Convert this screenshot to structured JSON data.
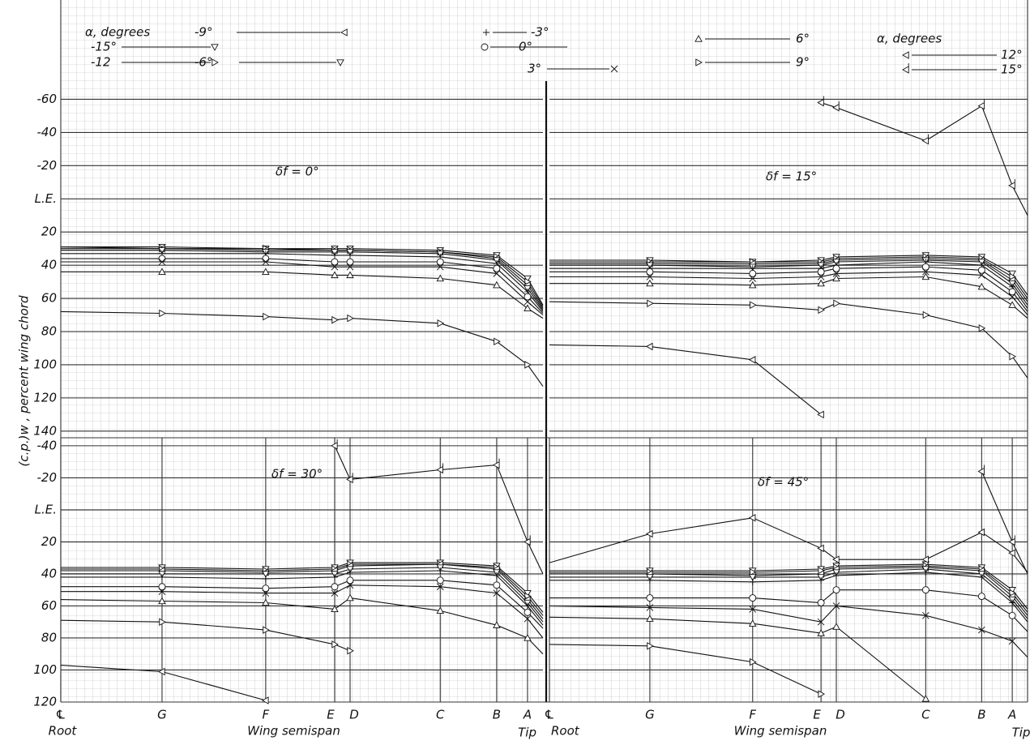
{
  "ylabel": "(c.p.)w , percent wing chord",
  "legend": {
    "title": "α, degrees",
    "entries": [
      {
        "label": "-15°",
        "marker": "tri-down"
      },
      {
        "label": "-12",
        "marker": "tri-right"
      },
      {
        "label": "-9°",
        "marker": "tri-left"
      },
      {
        "label": "-6°",
        "marker": "tri-down"
      },
      {
        "label": "-3°",
        "marker": "plus"
      },
      {
        "label": "0°",
        "marker": "circle"
      },
      {
        "label": "3°",
        "marker": "cross"
      },
      {
        "label": "6°",
        "marker": "tri-up"
      },
      {
        "label": "9°",
        "marker": "tri-right"
      },
      {
        "label": "12°",
        "marker": "tri-left"
      },
      {
        "label": "15°",
        "marker": "tri-left-flag"
      }
    ]
  },
  "chart_data": [
    {
      "type": "line",
      "title": "δf = 0°",
      "color": "#111",
      "x": [
        0,
        21,
        42.5,
        56.8,
        60,
        78.7,
        90.4,
        96.8,
        100
      ],
      "xlim": [
        0,
        100
      ],
      "ylim": [
        -70,
        144
      ],
      "y_inverted": true,
      "yticks": [
        -60,
        -40,
        -20,
        {
          "value": 0,
          "label": "L.E."
        },
        20,
        40,
        60,
        80,
        100,
        120,
        140
      ],
      "series": [
        {
          "values": [
            29,
            29,
            30,
            30,
            30,
            31,
            34,
            48,
            64
          ]
        },
        {
          "values": [
            29,
            30,
            30,
            31,
            31,
            32,
            35,
            50,
            65
          ]
        },
        {
          "values": [
            30,
            30,
            31,
            31,
            31,
            32,
            36,
            52,
            66
          ]
        },
        {
          "values": [
            31,
            31,
            32,
            32,
            32,
            33,
            37,
            54,
            67
          ]
        },
        {
          "values": [
            33,
            33,
            33,
            34,
            34,
            35,
            39,
            56,
            68
          ]
        },
        {
          "values": [
            36,
            36,
            36,
            38,
            38,
            38,
            42,
            59,
            69
          ]
        },
        {
          "values": [
            38,
            38,
            38,
            41,
            41,
            41,
            45,
            62,
            70
          ]
        },
        {
          "values": [
            44,
            44,
            44,
            46,
            46,
            48,
            52,
            66,
            72
          ]
        },
        {
          "values": [
            68,
            69,
            71,
            73,
            72,
            75,
            86,
            100,
            113
          ]
        },
        {
          "values": [
            null,
            null,
            null,
            null,
            null,
            null,
            null,
            null,
            null
          ]
        },
        {
          "values": [
            null,
            null,
            null,
            null,
            null,
            null,
            null,
            null,
            null
          ]
        }
      ]
    },
    {
      "type": "line",
      "title": "δf = 15°",
      "color": "#111",
      "x": [
        0,
        21,
        42.5,
        56.8,
        60,
        78.7,
        90.4,
        96.8,
        100
      ],
      "xlim": [
        0,
        100
      ],
      "ylim": [
        -70,
        144
      ],
      "y_inverted": true,
      "yticks": [
        -60,
        -40,
        -20,
        0,
        20,
        40,
        60,
        80,
        100,
        120,
        140
      ],
      "series": [
        {
          "values": [
            37,
            37,
            38,
            37,
            35,
            34,
            35,
            45,
            58
          ]
        },
        {
          "values": [
            38,
            38,
            38,
            38,
            36,
            35,
            36,
            47,
            60
          ]
        },
        {
          "values": [
            39,
            39,
            39,
            39,
            37,
            36,
            37,
            49,
            62
          ]
        },
        {
          "values": [
            40,
            40,
            41,
            40,
            38,
            37,
            38,
            51,
            64
          ]
        },
        {
          "values": [
            42,
            42,
            42,
            42,
            40,
            38,
            40,
            53,
            66
          ]
        },
        {
          "values": [
            44,
            44,
            45,
            44,
            42,
            41,
            43,
            56,
            68
          ]
        },
        {
          "values": [
            47,
            47,
            48,
            47,
            45,
            44,
            46,
            59,
            70
          ]
        },
        {
          "values": [
            51,
            51,
            52,
            51,
            48,
            47,
            53,
            64,
            72
          ]
        },
        {
          "values": [
            62,
            63,
            64,
            67,
            63,
            70,
            78,
            95,
            108
          ]
        },
        {
          "values": [
            88,
            89,
            97,
            130,
            null,
            null,
            null,
            null,
            null
          ]
        },
        {
          "values": [
            null,
            null,
            null,
            -58,
            -55,
            -35,
            -56,
            -8,
            10
          ]
        }
      ]
    },
    {
      "type": "line",
      "title": "δf = 30°",
      "color": "#111",
      "x": [
        0,
        21,
        42.5,
        56.8,
        60,
        78.7,
        90.4,
        96.8,
        100
      ],
      "xlim": [
        0,
        100
      ],
      "xticks": [
        {
          "value": 0,
          "label": "℄"
        },
        {
          "value": 21,
          "label": "G"
        },
        {
          "value": 42.5,
          "label": "F"
        },
        {
          "value": 56.8,
          "label": "E"
        },
        {
          "value": 60,
          "label": "D"
        },
        {
          "value": 78.7,
          "label": "C"
        },
        {
          "value": 90.4,
          "label": "B"
        },
        {
          "value": 96.8,
          "label": "A"
        }
      ],
      "xlabel": "Wing semispan",
      "root_label": "Root",
      "tip_label": "Tip",
      "ylim": [
        -45,
        120
      ],
      "y_inverted": true,
      "yticks": [
        -40,
        -20,
        {
          "value": 0,
          "label": "L.E."
        },
        20,
        40,
        60,
        80,
        100,
        120
      ],
      "series": [
        {
          "values": [
            36,
            36,
            37,
            36,
            33,
            33,
            35,
            52,
            64
          ]
        },
        {
          "values": [
            37,
            37,
            38,
            37,
            34,
            34,
            36,
            54,
            66
          ]
        },
        {
          "values": [
            38,
            38,
            39,
            38,
            35,
            34,
            37,
            56,
            68
          ]
        },
        {
          "values": [
            40,
            40,
            40,
            40,
            37,
            36,
            39,
            58,
            70
          ]
        },
        {
          "values": [
            42,
            42,
            43,
            42,
            39,
            38,
            41,
            60,
            72
          ]
        },
        {
          "values": [
            48,
            48,
            49,
            48,
            44,
            44,
            47,
            64,
            74
          ]
        },
        {
          "values": [
            51,
            51,
            52,
            52,
            47,
            48,
            52,
            68,
            80
          ]
        },
        {
          "values": [
            56,
            57,
            58,
            62,
            55,
            63,
            72,
            80,
            90
          ]
        },
        {
          "values": [
            69,
            70,
            75,
            84,
            88,
            null,
            null,
            null,
            null
          ]
        },
        {
          "values": [
            97,
            101,
            119,
            null,
            null,
            null,
            null,
            null,
            null
          ]
        },
        {
          "values": [
            null,
            null,
            null,
            -40,
            -19,
            -25,
            -28,
            20,
            40
          ]
        }
      ]
    },
    {
      "type": "line",
      "title": "δf = 45°",
      "color": "#111",
      "x": [
        0,
        21,
        42.5,
        56.8,
        60,
        78.7,
        90.4,
        96.8,
        100
      ],
      "xlim": [
        0,
        100
      ],
      "xticks": [
        {
          "value": 0,
          "label": "℄"
        },
        {
          "value": 21,
          "label": "G"
        },
        {
          "value": 42.5,
          "label": "F"
        },
        {
          "value": 56.8,
          "label": "E"
        },
        {
          "value": 60,
          "label": "D"
        },
        {
          "value": 78.7,
          "label": "C"
        },
        {
          "value": 90.4,
          "label": "B"
        },
        {
          "value": 96.8,
          "label": "A"
        }
      ],
      "xlabel": "Wing semispan",
      "root_label": "Root",
      "tip_label": "Tip",
      "ylim": [
        -45,
        120
      ],
      "y_inverted": true,
      "yticks": [
        -40,
        -20,
        0,
        20,
        40,
        60,
        80,
        100,
        120
      ],
      "series": [
        {
          "values": [
            38,
            38,
            38,
            37,
            35,
            34,
            36,
            50,
            62
          ]
        },
        {
          "values": [
            39,
            39,
            39,
            38,
            36,
            35,
            37,
            52,
            64
          ]
        },
        {
          "values": [
            40,
            40,
            41,
            40,
            37,
            36,
            38,
            54,
            66
          ]
        },
        {
          "values": [
            42,
            42,
            42,
            42,
            39,
            37,
            40,
            56,
            68
          ]
        },
        {
          "values": [
            44,
            44,
            45,
            44,
            41,
            39,
            42,
            58,
            70
          ]
        },
        {
          "values": [
            55,
            55,
            55,
            58,
            50,
            50,
            54,
            66,
            76
          ]
        },
        {
          "values": [
            60,
            61,
            62,
            70,
            60,
            66,
            75,
            82,
            92
          ]
        },
        {
          "values": [
            67,
            68,
            71,
            77,
            73,
            118,
            null,
            null,
            null
          ]
        },
        {
          "values": [
            84,
            85,
            95,
            115,
            null,
            null,
            null,
            null,
            null
          ]
        },
        {
          "values": [
            33,
            15,
            5,
            24,
            31,
            31,
            14,
            27,
            39
          ]
        },
        {
          "values": [
            null,
            null,
            null,
            null,
            null,
            null,
            -24,
            20,
            40
          ]
        }
      ]
    }
  ]
}
